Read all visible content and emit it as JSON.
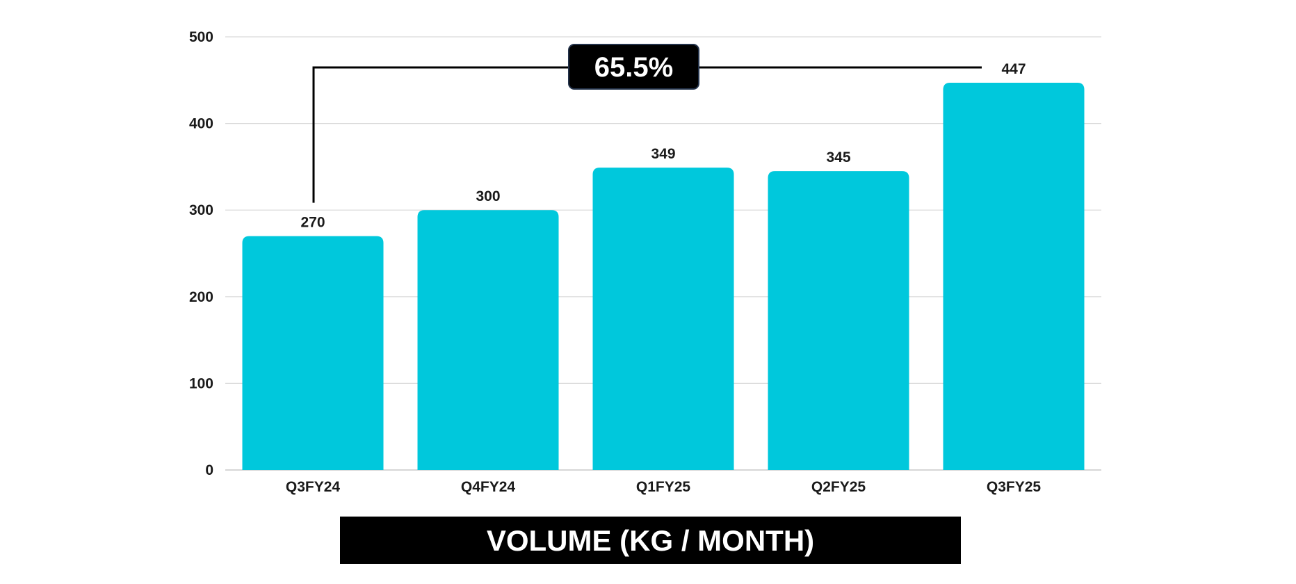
{
  "chart_data": {
    "type": "bar",
    "title": "VOLUME (KG / MONTH)",
    "categories": [
      "Q3FY24",
      "Q4FY24",
      "Q1FY25",
      "Q2FY25",
      "Q3FY25"
    ],
    "values": [
      270,
      300,
      349,
      345,
      447
    ],
    "data_labels": [
      "270",
      "300",
      "349",
      "345",
      "447"
    ],
    "ylim": [
      0,
      500
    ],
    "yticks": [
      0,
      100,
      200,
      300,
      400,
      500
    ],
    "grid": true,
    "colors": {
      "bar": "#00C8DC",
      "title_bg": "#000000",
      "callout_bg": "#000000",
      "callout_border": "#23324a",
      "connector": "#000000"
    },
    "annotation": {
      "text": "65.5%",
      "from": "Q3FY24",
      "to": "Q3FY25"
    }
  }
}
